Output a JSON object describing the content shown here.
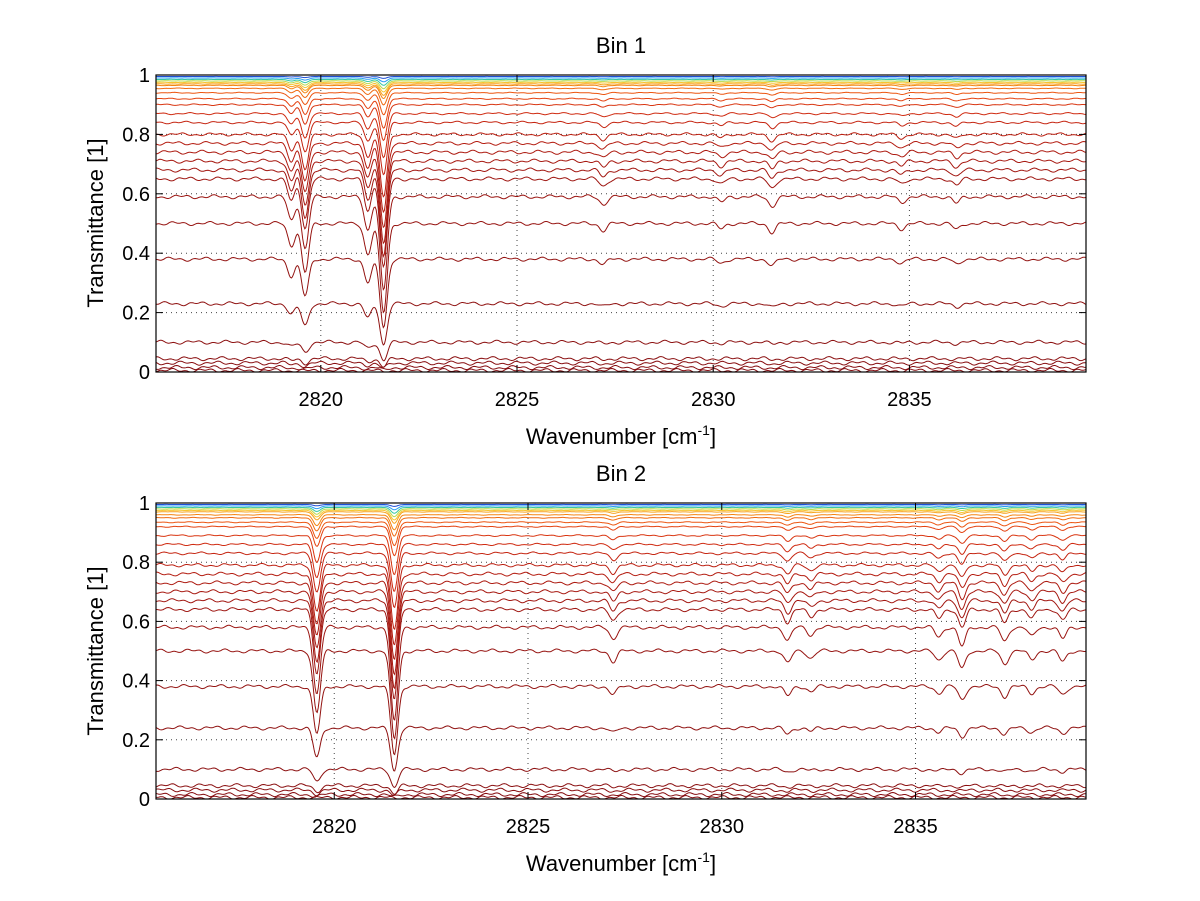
{
  "chart_data": [
    {
      "type": "line",
      "title": "Bin 1",
      "xlabel": "Wavenumber [cm",
      "xlabel_sup": "-1",
      "xlabel_end": "]",
      "ylabel": "Transmittance [1]",
      "xlim": [
        2815.8,
        2839.5
      ],
      "ylim": [
        0,
        1
      ],
      "xticks": [
        2820,
        2825,
        2830,
        2835
      ],
      "xtick_labels": [
        "2820",
        "2825",
        "2830",
        "2835"
      ],
      "yticks": [
        0,
        0.2,
        0.4,
        0.6,
        0.8,
        1
      ],
      "ytick_labels": [
        "0",
        "0.2",
        "0.4",
        "0.6",
        "0.8",
        "1"
      ],
      "grid": true,
      "absorption_lines": [
        {
          "x": 2819.25,
          "depth": 0.25
        },
        {
          "x": 2819.6,
          "depth": 0.55
        },
        {
          "x": 2821.2,
          "depth": 0.35
        },
        {
          "x": 2821.6,
          "depth": 1.0
        },
        {
          "x": 2827.2,
          "depth": 0.08
        },
        {
          "x": 2830.2,
          "depth": 0.06
        },
        {
          "x": 2831.5,
          "depth": 0.1
        },
        {
          "x": 2834.8,
          "depth": 0.06
        },
        {
          "x": 2836.2,
          "depth": 0.07
        }
      ],
      "series_baselines": [
        0.995,
        0.99,
        0.985,
        0.98,
        0.975,
        0.97,
        0.965,
        0.955,
        0.94,
        0.92,
        0.9,
        0.87,
        0.84,
        0.8,
        0.77,
        0.74,
        0.71,
        0.68,
        0.65,
        0.59,
        0.5,
        0.38,
        0.23,
        0.1,
        0.045,
        0.03,
        0.015,
        0.005
      ],
      "series_colors": [
        "#1f4fd6",
        "#2a9df4",
        "#37c8a0",
        "#b8d94a",
        "#f7c531",
        "#f7a21b",
        "#f48512",
        "#f06a10",
        "#ec5510",
        "#e44210",
        "#d93510",
        "#cf2a10",
        "#c52410",
        "#bb1f10",
        "#b41c10",
        "#ad1a10",
        "#a71810",
        "#a21610",
        "#9e1510",
        "#9a1410",
        "#961310",
        "#921210",
        "#8f1110",
        "#8c1010",
        "#8a0f10",
        "#880e10",
        "#860d10",
        "#840c10"
      ]
    },
    {
      "type": "line",
      "title": "Bin 2",
      "xlabel": "Wavenumber [cm",
      "xlabel_sup": "-1",
      "xlabel_end": "]",
      "ylabel": "Transmittance [1]",
      "xlim": [
        2815.4,
        2839.4
      ],
      "ylim": [
        0,
        1
      ],
      "xticks": [
        2820,
        2825,
        2830,
        2835
      ],
      "xtick_labels": [
        "2820",
        "2825",
        "2830",
        "2835"
      ],
      "yticks": [
        0,
        0.2,
        0.4,
        0.6,
        0.8,
        1
      ],
      "ytick_labels": [
        "0",
        "0.2",
        "0.4",
        "0.6",
        "0.8",
        "1"
      ],
      "grid": true,
      "absorption_lines": [
        {
          "x": 2819.55,
          "depth": 0.7
        },
        {
          "x": 2821.55,
          "depth": 1.0
        },
        {
          "x": 2827.2,
          "depth": 0.12
        },
        {
          "x": 2831.7,
          "depth": 0.14
        },
        {
          "x": 2832.3,
          "depth": 0.08
        },
        {
          "x": 2835.6,
          "depth": 0.1
        },
        {
          "x": 2836.2,
          "depth": 0.2
        },
        {
          "x": 2837.3,
          "depth": 0.15
        },
        {
          "x": 2838.0,
          "depth": 0.1
        },
        {
          "x": 2838.8,
          "depth": 0.12
        }
      ],
      "series_baselines": [
        0.995,
        0.99,
        0.985,
        0.98,
        0.975,
        0.97,
        0.96,
        0.95,
        0.935,
        0.92,
        0.89,
        0.86,
        0.83,
        0.79,
        0.76,
        0.73,
        0.7,
        0.67,
        0.64,
        0.58,
        0.5,
        0.38,
        0.24,
        0.1,
        0.045,
        0.03,
        0.015,
        0.005
      ],
      "series_colors": [
        "#1f4fd6",
        "#2a9df4",
        "#37c8a0",
        "#b8d94a",
        "#f7c531",
        "#f7a21b",
        "#f48512",
        "#f06a10",
        "#ec5510",
        "#e44210",
        "#d93510",
        "#cf2a10",
        "#c52410",
        "#bb1f10",
        "#b41c10",
        "#ad1a10",
        "#a71810",
        "#a21610",
        "#9e1510",
        "#9a1410",
        "#961310",
        "#921210",
        "#8f1110",
        "#8c1010",
        "#8a0f10",
        "#880e10",
        "#860d10",
        "#840c10"
      ]
    }
  ]
}
